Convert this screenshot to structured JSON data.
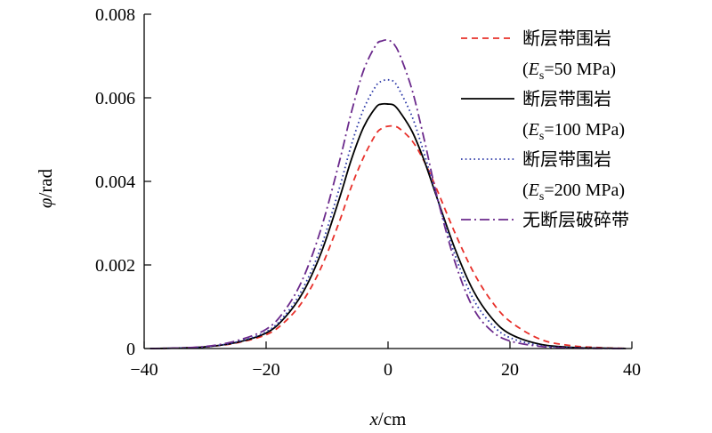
{
  "chart_data": {
    "type": "line",
    "title": "",
    "xlabel": {
      "var": "x",
      "unit": "/cm"
    },
    "ylabel": {
      "var": "φ",
      "unit": "/rad"
    },
    "xlim": [
      -40,
      40
    ],
    "ylim": [
      0,
      0.008
    ],
    "x_ticks": [
      -40,
      -20,
      0,
      20,
      40
    ],
    "x_tick_labels": [
      "−40",
      "−20",
      "0",
      "20",
      "40"
    ],
    "y_ticks": [
      0,
      0.002,
      0.004,
      0.006,
      0.008
    ],
    "y_tick_labels": [
      "0",
      "0.002",
      "0.004",
      "0.006",
      "0.008"
    ],
    "grid": false,
    "legend_position": "top-right",
    "series": [
      {
        "name": "断层带围岩",
        "name_sub": {
          "var": "E",
          "sub": "s",
          "rest": "=50 MPa"
        },
        "color": "#e8302a",
        "dash": "dashed",
        "x": [
          -39,
          -35,
          -30,
          -25,
          -20,
          -17,
          -14,
          -11,
          -8,
          -6,
          -4,
          -2,
          -1,
          0,
          1,
          2,
          4,
          6,
          8,
          11,
          14,
          17,
          20,
          25,
          30,
          35,
          39
        ],
        "y": [
          0,
          1e-05,
          4e-05,
          0.00013,
          0.00033,
          0.00063,
          0.00113,
          0.00193,
          0.00303,
          0.00388,
          0.00458,
          0.00513,
          0.00527,
          0.00532,
          0.00532,
          0.00525,
          0.00496,
          0.00446,
          0.00381,
          0.00276,
          0.00183,
          0.00113,
          0.00065,
          0.00022,
          7e-05,
          2e-05,
          5e-06
        ]
      },
      {
        "name": "断层带围岩",
        "name_sub": {
          "var": "E",
          "sub": "s",
          "rest": "=100 MPa"
        },
        "color": "#000000",
        "dash": "solid",
        "x": [
          -39,
          -35,
          -30,
          -25,
          -20,
          -17,
          -14,
          -11,
          -8,
          -6,
          -4,
          -2,
          -1,
          0,
          1,
          2,
          4,
          6,
          8,
          11,
          14,
          17,
          20,
          25,
          30,
          35,
          39
        ],
        "y": [
          0,
          1e-05,
          4e-05,
          0.00014,
          0.00037,
          0.00073,
          0.00133,
          0.00228,
          0.00358,
          0.00453,
          0.0053,
          0.00577,
          0.00585,
          0.00585,
          0.00582,
          0.00565,
          0.00518,
          0.00447,
          0.00362,
          0.00238,
          0.00138,
          0.00073,
          0.00035,
          0.0001,
          3e-05,
          1e-05,
          3e-06
        ]
      },
      {
        "name": "断层带围岩",
        "name_sub": {
          "var": "E",
          "sub": "s",
          "rest": "=200 MPa"
        },
        "color": "#2d3aa8",
        "dash": "dotted",
        "x": [
          -39,
          -35,
          -30,
          -25,
          -20,
          -17,
          -14,
          -11,
          -8,
          -6,
          -4,
          -2,
          -1,
          0,
          1,
          2,
          4,
          6,
          8,
          11,
          14,
          17,
          20,
          25,
          30,
          35,
          39
        ],
        "y": [
          0,
          1e-05,
          4e-05,
          0.00015,
          0.0004,
          0.00078,
          0.00143,
          0.00243,
          0.00383,
          0.00488,
          0.00573,
          0.00628,
          0.0064,
          0.00643,
          0.00638,
          0.00615,
          0.00553,
          0.00463,
          0.00363,
          0.00223,
          0.00118,
          0.00058,
          0.00026,
          7e-05,
          2e-05,
          5e-06,
          2e-06
        ]
      },
      {
        "name": "无断层破碎带",
        "color": "#6b2a8c",
        "dash": "dashdot",
        "x": [
          -39,
          -35,
          -30,
          -25,
          -20,
          -17,
          -14,
          -11,
          -8,
          -6,
          -4,
          -2,
          -1,
          0,
          1,
          2,
          4,
          6,
          8,
          11,
          14,
          17,
          20,
          25,
          30,
          35,
          39
        ],
        "y": [
          0,
          1e-05,
          5e-05,
          0.00018,
          0.00046,
          0.0009,
          0.00166,
          0.00286,
          0.00446,
          0.00566,
          0.00666,
          0.00726,
          0.00736,
          0.00738,
          0.00728,
          0.007,
          0.00616,
          0.00496,
          0.00366,
          0.00206,
          0.00096,
          0.00042,
          0.00018,
          5e-05,
          1e-05,
          3e-06,
          1e-06
        ]
      }
    ]
  }
}
